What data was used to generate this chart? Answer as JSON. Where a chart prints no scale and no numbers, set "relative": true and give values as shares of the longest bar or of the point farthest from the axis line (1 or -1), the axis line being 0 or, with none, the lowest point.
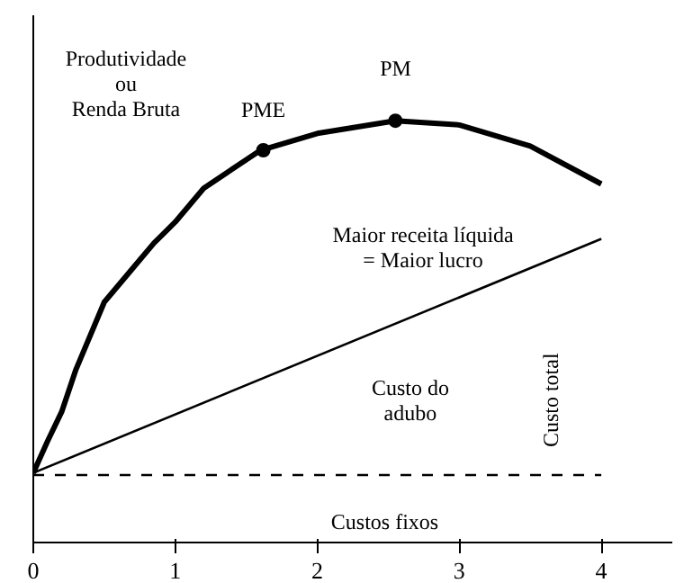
{
  "chart_data": {
    "type": "line",
    "relative": true,
    "x": [
      0,
      0.1,
      0.2,
      0.3,
      0.5,
      0.7,
      0.85,
      1,
      1.2,
      1.6,
      2,
      2.55,
      3,
      3.5,
      4
    ],
    "xlim": [
      0,
      4.5
    ],
    "xticks": [
      0,
      1,
      2,
      3,
      4
    ],
    "grid": false,
    "series": [
      {
        "color": "#000000",
        "values": [
          0.165,
          0.24,
          0.31,
          0.41,
          0.57,
          0.65,
          0.71,
          0.76,
          0.84,
          0.93,
          0.97,
          1.0,
          0.99,
          0.94,
          0.85
        ]
      },
      {
        "color": "#000000",
        "x": [
          0,
          4
        ],
        "values": [
          0.165,
          0.72
        ]
      },
      {
        "color": "#000000",
        "x": [
          0,
          4
        ],
        "values": [
          0.16,
          0.16
        ],
        "line_style": "dashed"
      },
      {
        "type": "scatter",
        "color": "#000000",
        "x": [
          1.62,
          2.55
        ],
        "values": [
          0.93,
          1.0
        ],
        "marker": "circle"
      }
    ],
    "annotations": [
      "Produtividade\nou\nRenda Bruta",
      "PME",
      "PM",
      "Maior receita líquida\n= Maior lucro",
      "Custo do\nadubo",
      "Custo total",
      "Custos fixos"
    ]
  }
}
